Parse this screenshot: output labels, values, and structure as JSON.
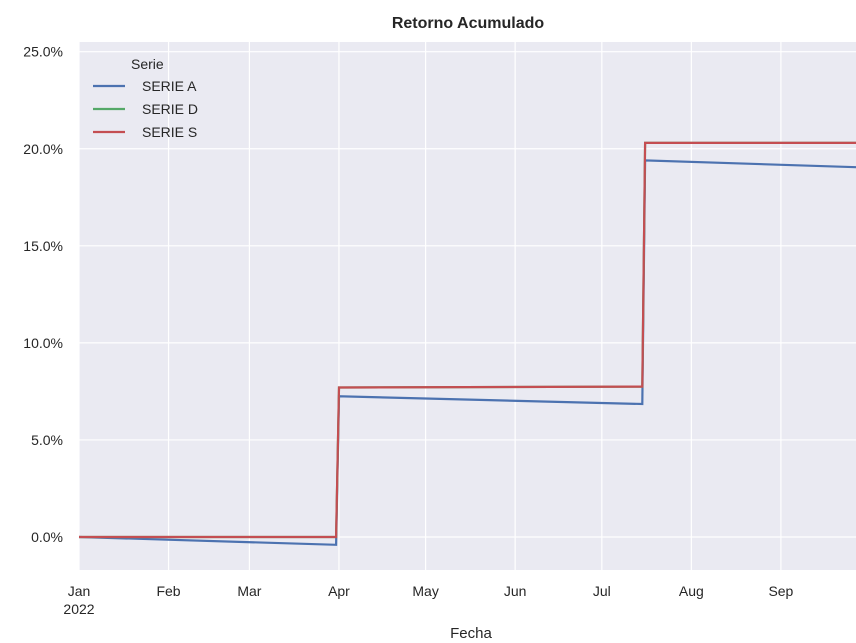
{
  "chart_data": {
    "type": "line",
    "title": "Retorno Acumulado",
    "xlabel": "Fecha",
    "ylabel": "",
    "x_ticks": [
      {
        "date": "2022-01-01",
        "label": "Jan",
        "sublabel": "2022"
      },
      {
        "date": "2022-02-01",
        "label": "Feb",
        "sublabel": ""
      },
      {
        "date": "2022-03-01",
        "label": "Mar",
        "sublabel": ""
      },
      {
        "date": "2022-04-01",
        "label": "Apr",
        "sublabel": ""
      },
      {
        "date": "2022-05-01",
        "label": "May",
        "sublabel": ""
      },
      {
        "date": "2022-06-01",
        "label": "Jun",
        "sublabel": ""
      },
      {
        "date": "2022-07-01",
        "label": "Jul",
        "sublabel": ""
      },
      {
        "date": "2022-08-01",
        "label": "Aug",
        "sublabel": ""
      },
      {
        "date": "2022-09-01",
        "label": "Sep",
        "sublabel": ""
      }
    ],
    "xlim": [
      "2022-01-01",
      "2022-09-27"
    ],
    "ylim": [
      -1.7,
      25.5
    ],
    "y_ticks": [
      0,
      5,
      10,
      15,
      20,
      25
    ],
    "y_tick_labels": [
      "0.0%",
      "5.0%",
      "10.0%",
      "15.0%",
      "20.0%",
      "25.0%"
    ],
    "grid": true,
    "background": "#eaeaf2",
    "legend": {
      "title": "Serie",
      "position": "top-left"
    },
    "series": [
      {
        "name": "SERIE A",
        "color": "#4c72b0",
        "points": [
          [
            "2022-01-01",
            0.0
          ],
          [
            "2022-03-31",
            -0.4
          ],
          [
            "2022-04-01",
            7.25
          ],
          [
            "2022-07-15",
            6.85
          ],
          [
            "2022-07-16",
            19.4
          ],
          [
            "2022-09-27",
            19.05
          ]
        ]
      },
      {
        "name": "SERIE D",
        "color": "#55a868",
        "points": [
          [
            "2022-01-01",
            0.0
          ],
          [
            "2022-03-31",
            0.0
          ],
          [
            "2022-04-01",
            7.7
          ],
          [
            "2022-07-15",
            7.75
          ],
          [
            "2022-07-16",
            20.3
          ],
          [
            "2022-09-27",
            20.3
          ]
        ]
      },
      {
        "name": "SERIE S",
        "color": "#c44e52",
        "points": [
          [
            "2022-01-01",
            0.0
          ],
          [
            "2022-03-31",
            0.0
          ],
          [
            "2022-04-01",
            7.7
          ],
          [
            "2022-07-15",
            7.75
          ],
          [
            "2022-07-16",
            20.3
          ],
          [
            "2022-09-27",
            20.3
          ]
        ]
      }
    ]
  }
}
